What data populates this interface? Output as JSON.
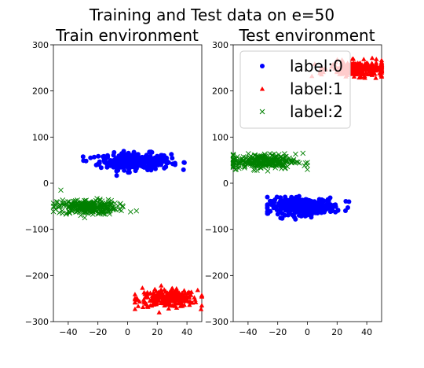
{
  "chart_data": {
    "type": "scatter",
    "suptitle": "Training and Test data on e=50",
    "xticks": [
      "−40",
      "−20",
      "0",
      "20",
      "40"
    ],
    "yticks": [
      "300",
      "200",
      "100",
      "0",
      "−100",
      "−200",
      "−300"
    ],
    "colors": {
      "label:0": "#0000ff",
      "label:1": "#ff0000",
      "label:2": "#008000"
    },
    "legend": {
      "placement": "top-right of Test environment panel",
      "entries": [
        {
          "label": "label:0",
          "marker": "circle",
          "color": "#0000ff"
        },
        {
          "label": "label:1",
          "marker": "triangle",
          "color": "#ff0000"
        },
        {
          "label": "label:2",
          "marker": "x",
          "color": "#008000"
        }
      ]
    },
    "panels": [
      {
        "title": "Train environment",
        "xlim": [
          -50,
          50
        ],
        "ylim": [
          -300,
          300
        ],
        "grid": false,
        "series": [
          {
            "label": "label:0",
            "marker": "circle",
            "center": [
              5,
              47
            ],
            "spread": [
              12,
              9
            ],
            "x_range": [
              -30,
              40
            ],
            "y_range": [
              12,
              78
            ],
            "n": 300,
            "outliers": [
              [
                32,
                40
              ],
              [
                38,
                45
              ],
              [
                -28,
                48
              ],
              [
                -25,
                55
              ]
            ]
          },
          {
            "label": "label:1",
            "marker": "triangle",
            "center": [
              27,
              -250
            ],
            "spread": [
              10,
              9
            ],
            "x_range": [
              5,
              50
            ],
            "y_range": [
              -280,
              -222
            ],
            "n": 300,
            "outliers": [
              [
                10,
                -227
              ],
              [
                12,
                -240
              ]
            ]
          },
          {
            "label": "label:2",
            "marker": "x",
            "center": [
              -27,
              -52
            ],
            "spread": [
              10,
              8
            ],
            "x_range": [
              -50,
              6
            ],
            "y_range": [
              -85,
              -15
            ],
            "n": 300,
            "outliers": [
              [
                -45,
                -15
              ],
              [
                6,
                -60
              ],
              [
                2,
                -62
              ]
            ]
          }
        ]
      },
      {
        "title": "Test environment",
        "xlim": [
          -50,
          50
        ],
        "ylim": [
          -300,
          300
        ],
        "grid": false,
        "series": [
          {
            "label": "label:0",
            "marker": "circle",
            "center": [
              -3,
              -50
            ],
            "spread": [
              11,
              9
            ],
            "x_range": [
              -27,
              30
            ],
            "y_range": [
              -88,
              -18
            ],
            "n": 300,
            "outliers": [
              [
                28,
                -40
              ],
              [
                -27,
                -30
              ]
            ]
          },
          {
            "label": "label:1",
            "marker": "triangle",
            "center": [
              35,
              248
            ],
            "spread": [
              10,
              8
            ],
            "x_range": [
              0,
              50
            ],
            "y_range": [
              212,
              280
            ],
            "n": 300,
            "outliers": [
              [
                3,
                232
              ],
              [
                50,
                252
              ]
            ]
          },
          {
            "label": "label:2",
            "marker": "x",
            "center": [
              -30,
              47
            ],
            "spread": [
              11,
              8
            ],
            "x_range": [
              -50,
              0
            ],
            "y_range": [
              12,
              85
            ],
            "n": 300,
            "outliers": [
              [
                -2,
                38
              ],
              [
                -3,
                65
              ]
            ]
          }
        ]
      }
    ]
  }
}
